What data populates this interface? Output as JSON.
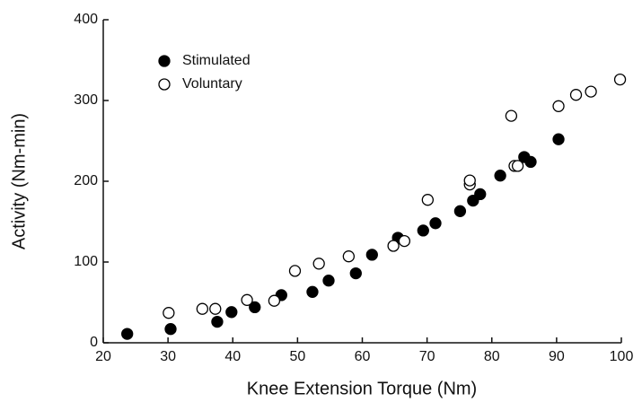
{
  "chart_data": {
    "type": "scatter",
    "x_label": "Knee Extension Torque (Nm)",
    "y_label": "Activity (Nm-min)",
    "xlim": [
      20,
      100
    ],
    "xticks": [
      20,
      30,
      40,
      50,
      60,
      70,
      80,
      90,
      100
    ],
    "ylim": [
      0,
      400
    ],
    "yticks": [
      0,
      100,
      200,
      300,
      400
    ],
    "legend": "upper left",
    "series": [
      {
        "name": "Stimulated",
        "color": "#000000",
        "marker": "filled",
        "x": [
          23.7,
          30.4,
          37.6,
          39.8,
          43.4,
          47.5,
          52.3,
          54.8,
          59,
          61.5,
          65.5,
          69.4,
          71.3,
          75.1,
          77.1,
          78.2,
          81.3,
          85,
          86,
          90.3
        ],
        "y": [
          11,
          17,
          26,
          38,
          44,
          59,
          63,
          77,
          86,
          109,
          130,
          139,
          148,
          163,
          176,
          184,
          207,
          230,
          224,
          252
        ]
      },
      {
        "name": "Voluntary",
        "color": "#000000",
        "marker": "open",
        "x": [
          30.1,
          35.3,
          37.3,
          42.2,
          46.4,
          49.6,
          53.3,
          57.9,
          64.8,
          66.5,
          70.1,
          76.6,
          76.6,
          83,
          83.5,
          84,
          90.3,
          93,
          95.3,
          99.8
        ],
        "y": [
          37,
          42,
          42,
          53,
          52,
          89,
          98,
          107,
          120,
          126,
          177,
          196,
          201,
          281,
          219,
          219,
          293,
          307,
          311,
          326
        ]
      }
    ]
  }
}
